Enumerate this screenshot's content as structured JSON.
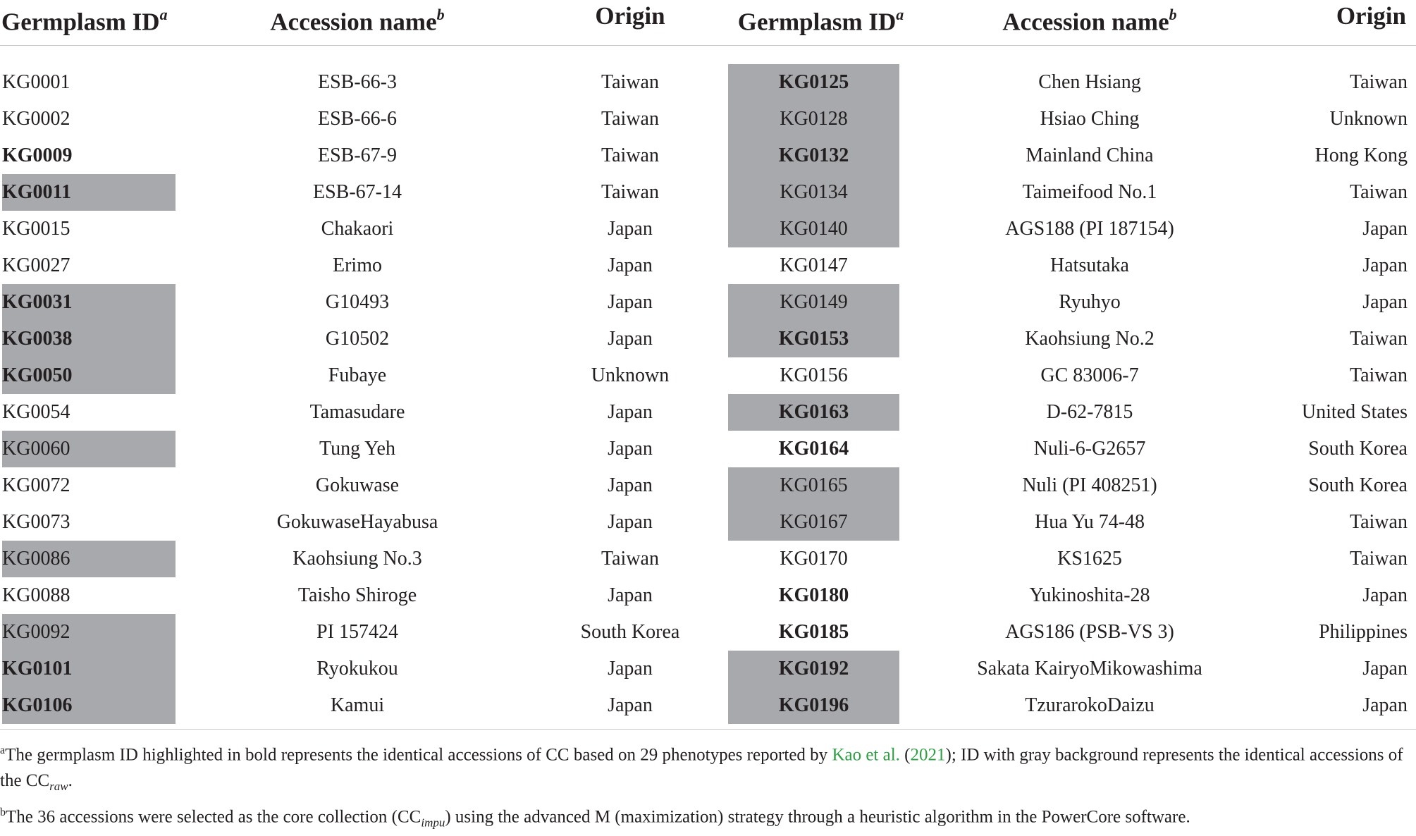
{
  "headers": {
    "germplasm_id": "Germplasm ID",
    "germplasm_id_sup": "a",
    "accession_name": "Accession name",
    "accession_name_sup": "b",
    "origin": "Origin"
  },
  "left_rows": [
    {
      "id": "KG0001",
      "name": "ESB-66-3",
      "origin": "Taiwan",
      "bold": false,
      "gray": false
    },
    {
      "id": "KG0002",
      "name": "ESB-66-6",
      "origin": "Taiwan",
      "bold": false,
      "gray": false
    },
    {
      "id": "KG0009",
      "name": "ESB-67-9",
      "origin": "Taiwan",
      "bold": true,
      "gray": false
    },
    {
      "id": "KG0011",
      "name": "ESB-67-14",
      "origin": "Taiwan",
      "bold": true,
      "gray": true
    },
    {
      "id": "KG0015",
      "name": "Chakaori",
      "origin": "Japan",
      "bold": false,
      "gray": false
    },
    {
      "id": "KG0027",
      "name": "Erimo",
      "origin": "Japan",
      "bold": false,
      "gray": false
    },
    {
      "id": "KG0031",
      "name": "G10493",
      "origin": "Japan",
      "bold": true,
      "gray": true
    },
    {
      "id": "KG0038",
      "name": "G10502",
      "origin": "Japan",
      "bold": true,
      "gray": true
    },
    {
      "id": "KG0050",
      "name": "Fubaye",
      "origin": "Unknown",
      "bold": true,
      "gray": true
    },
    {
      "id": "KG0054",
      "name": "Tamasudare",
      "origin": "Japan",
      "bold": false,
      "gray": false
    },
    {
      "id": "KG0060",
      "name": "Tung Yeh",
      "origin": "Japan",
      "bold": false,
      "gray": true
    },
    {
      "id": "KG0072",
      "name": "Gokuwase",
      "origin": "Japan",
      "bold": false,
      "gray": false
    },
    {
      "id": "KG0073",
      "name": "GokuwaseHayabusa",
      "origin": "Japan",
      "bold": false,
      "gray": false
    },
    {
      "id": "KG0086",
      "name": "Kaohsiung No.3",
      "origin": "Taiwan",
      "bold": false,
      "gray": true
    },
    {
      "id": "KG0088",
      "name": "Taisho Shiroge",
      "origin": "Japan",
      "bold": false,
      "gray": false
    },
    {
      "id": "KG0092",
      "name": "PI 157424",
      "origin": "South Korea",
      "bold": false,
      "gray": true
    },
    {
      "id": "KG0101",
      "name": "Ryokukou",
      "origin": "Japan",
      "bold": true,
      "gray": true
    },
    {
      "id": "KG0106",
      "name": "Kamui",
      "origin": "Japan",
      "bold": true,
      "gray": true
    }
  ],
  "right_rows": [
    {
      "id": "KG0125",
      "name": "Chen Hsiang",
      "origin": "Taiwan",
      "bold": true,
      "gray": true
    },
    {
      "id": "KG0128",
      "name": "Hsiao Ching",
      "origin": "Unknown",
      "bold": false,
      "gray": true
    },
    {
      "id": "KG0132",
      "name": "Mainland China",
      "origin": "Hong Kong",
      "bold": true,
      "gray": true
    },
    {
      "id": "KG0134",
      "name": "Taimeifood No.1",
      "origin": "Taiwan",
      "bold": false,
      "gray": true
    },
    {
      "id": "KG0140",
      "name": "AGS188 (PI 187154)",
      "origin": "Japan",
      "bold": false,
      "gray": true
    },
    {
      "id": "KG0147",
      "name": "Hatsutaka",
      "origin": "Japan",
      "bold": false,
      "gray": false
    },
    {
      "id": "KG0149",
      "name": "Ryuhyo",
      "origin": "Japan",
      "bold": false,
      "gray": true
    },
    {
      "id": "KG0153",
      "name": "Kaohsiung No.2",
      "origin": "Taiwan",
      "bold": true,
      "gray": true
    },
    {
      "id": "KG0156",
      "name": "GC 83006-7",
      "origin": "Taiwan",
      "bold": false,
      "gray": false
    },
    {
      "id": "KG0163",
      "name": "D-62-7815",
      "origin": "United States",
      "bold": true,
      "gray": true
    },
    {
      "id": "KG0164",
      "name": "Nuli-6-G2657",
      "origin": "South Korea",
      "bold": true,
      "gray": false
    },
    {
      "id": "KG0165",
      "name": "Nuli (PI 408251)",
      "origin": "South Korea",
      "bold": false,
      "gray": true
    },
    {
      "id": "KG0167",
      "name": "Hua Yu 74-48",
      "origin": "Taiwan",
      "bold": false,
      "gray": true
    },
    {
      "id": "KG0170",
      "name": "KS1625",
      "origin": "Taiwan",
      "bold": false,
      "gray": false
    },
    {
      "id": "KG0180",
      "name": "Yukinoshita-28",
      "origin": "Japan",
      "bold": true,
      "gray": false
    },
    {
      "id": "KG0185",
      "name": "AGS186 (PSB-VS 3)",
      "origin": "Philippines",
      "bold": true,
      "gray": false
    },
    {
      "id": "KG0192",
      "name": "Sakata KairyoMikowashima",
      "origin": "Japan",
      "bold": true,
      "gray": true
    },
    {
      "id": "KG0196",
      "name": "TzurarokoDaizu",
      "origin": "Japan",
      "bold": true,
      "gray": true
    }
  ],
  "footnotes": {
    "a_marker": "a",
    "a_text_1": "The germplasm ID highlighted in bold represents the identical accessions of CC based on 29 phenotypes reported by ",
    "a_link_author": "Kao et al.",
    "a_text_2": " (",
    "a_link_year": "2021",
    "a_text_3": "); ID with gray background represents the identical accessions of the CC",
    "a_sub": "raw",
    "a_text_4": ".",
    "b_marker": "b",
    "b_text_1": "The 36 accessions were selected as the core collection (CC",
    "b_sub": "impu",
    "b_text_2": ") using the advanced M (maximization) strategy through a heuristic algorithm in the PowerCore software."
  },
  "colors": {
    "highlight_gray": "#a7a9ac",
    "link_green": "#2ea043",
    "text": "#231f20"
  }
}
